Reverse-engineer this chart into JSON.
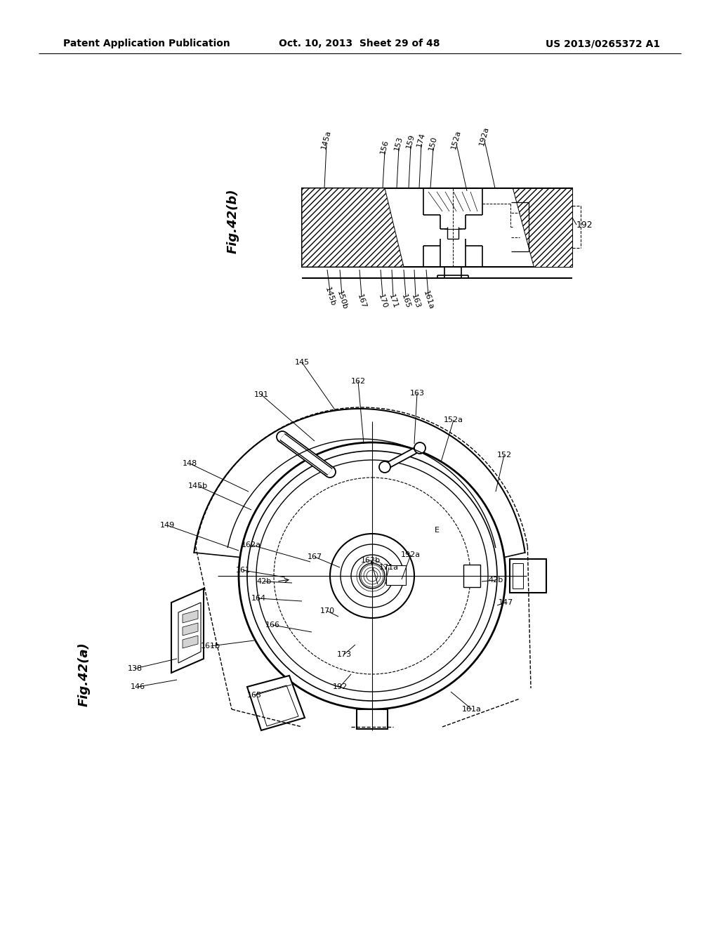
{
  "background_color": "#ffffff",
  "header": {
    "left": "Patent Application Publication",
    "center": "Oct. 10, 2013  Sheet 29 of 48",
    "right": "US 2013/0265372 A1",
    "font_size": 10
  }
}
